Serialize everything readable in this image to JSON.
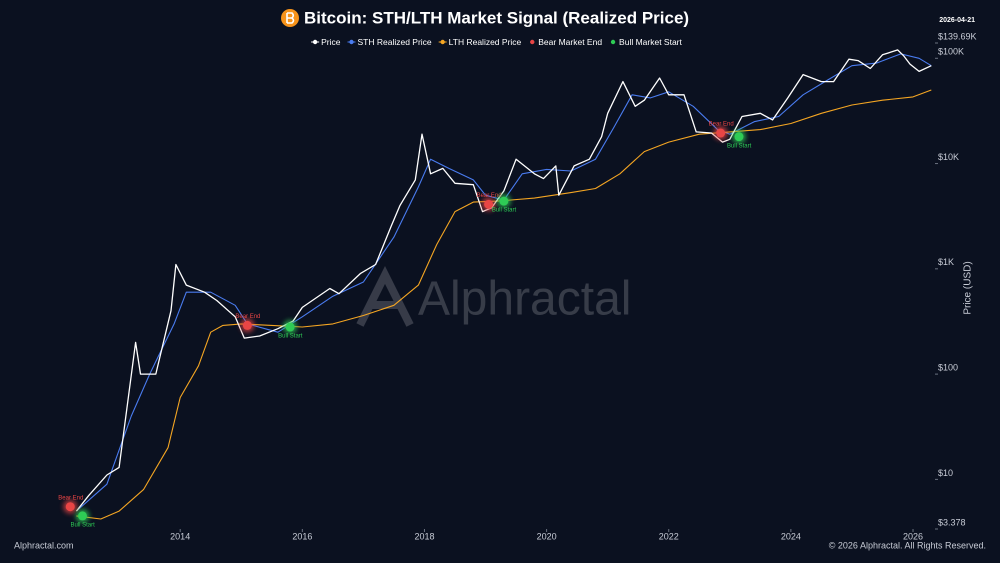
{
  "chart_data": {
    "type": "line",
    "title": "Bitcoin: STH/LTH Market Signal (Realized Price)",
    "date": "2026-04-21",
    "watermark": "Alphractal",
    "source": "Alphractal.com",
    "copyright": "© 2026 Alphractal. All Rights Reserved.",
    "y_label": "Price (USD)",
    "log_y": true,
    "grid": false,
    "legend": "top",
    "xlim": [
      2011.95,
      2026.36
    ],
    "xticks": [
      2014,
      2016,
      2018,
      2020,
      2022,
      2024,
      2026
    ],
    "ylim": [
      3.378,
      139690
    ],
    "yticks": [
      {
        "value": 3.378,
        "label": "$3.378"
      },
      {
        "value": 10,
        "label": "$10"
      },
      {
        "value": 100,
        "label": "$100"
      },
      {
        "value": 1000,
        "label": "$1K"
      },
      {
        "value": 10000,
        "label": "$10K"
      },
      {
        "value": 100000,
        "label": "$100K"
      },
      {
        "value": 139690,
        "label": "$139.69K"
      }
    ],
    "series": [
      {
        "name": "Price",
        "color": "#ffffff",
        "kind": "line",
        "x": [
          2012.3,
          2012.5,
          2012.8,
          2013.0,
          2013.27,
          2013.35,
          2013.6,
          2013.85,
          2013.93,
          2014.1,
          2014.4,
          2014.6,
          2014.9,
          2015.05,
          2015.3,
          2015.6,
          2015.85,
          2016.0,
          2016.45,
          2016.6,
          2016.95,
          2017.2,
          2017.45,
          2017.6,
          2017.85,
          2017.96,
          2018.1,
          2018.3,
          2018.5,
          2018.8,
          2018.95,
          2019.1,
          2019.3,
          2019.5,
          2019.8,
          2019.95,
          2020.15,
          2020.2,
          2020.45,
          2020.7,
          2020.9,
          2021.0,
          2021.25,
          2021.45,
          2021.6,
          2021.85,
          2022.0,
          2022.25,
          2022.45,
          2022.7,
          2022.88,
          2023.0,
          2023.2,
          2023.5,
          2023.7,
          2023.95,
          2024.2,
          2024.5,
          2024.7,
          2024.95,
          2025.1,
          2025.3,
          2025.5,
          2025.75,
          2025.85,
          2025.95,
          2026.1,
          2026.3
        ],
        "values": [
          5,
          7,
          11,
          13,
          200,
          100,
          100,
          400,
          1100,
          700,
          600,
          500,
          350,
          220,
          230,
          270,
          320,
          430,
          650,
          580,
          900,
          1100,
          2500,
          4000,
          7000,
          19000,
          8000,
          9000,
          6500,
          6300,
          3500,
          3800,
          5500,
          11000,
          8000,
          7200,
          9500,
          5000,
          9500,
          11000,
          18000,
          30000,
          60000,
          35000,
          40000,
          65000,
          45000,
          45000,
          20000,
          19500,
          16000,
          17000,
          28000,
          30000,
          26000,
          42000,
          70000,
          60000,
          60000,
          98000,
          95000,
          80000,
          108000,
          120000,
          105000,
          88000,
          75000,
          85000
        ]
      },
      {
        "name": "STH Realized Price",
        "color": "#4a7cf0",
        "kind": "line",
        "x": [
          2012.3,
          2012.8,
          2013.2,
          2013.5,
          2013.9,
          2014.1,
          2014.5,
          2014.9,
          2015.1,
          2015.6,
          2016.0,
          2016.5,
          2017.0,
          2017.5,
          2017.9,
          2018.1,
          2018.4,
          2018.8,
          2019.0,
          2019.3,
          2019.6,
          2020.0,
          2020.4,
          2020.8,
          2021.1,
          2021.4,
          2021.7,
          2022.0,
          2022.4,
          2022.8,
          2023.0,
          2023.4,
          2023.8,
          2024.2,
          2024.6,
          2025.0,
          2025.4,
          2025.8,
          2026.1,
          2026.3
        ],
        "values": [
          5,
          9,
          40,
          100,
          300,
          600,
          600,
          450,
          300,
          250,
          350,
          550,
          750,
          2000,
          6000,
          11000,
          9000,
          7000,
          5000,
          4500,
          8000,
          8800,
          8500,
          11000,
          22000,
          45000,
          42000,
          48000,
          35000,
          21000,
          19000,
          25000,
          28000,
          45000,
          62000,
          85000,
          90000,
          110000,
          100000,
          85000
        ]
      },
      {
        "name": "LTH Realized Price",
        "color": "#f5a623",
        "kind": "line",
        "x": [
          2012.3,
          2012.7,
          2013.0,
          2013.4,
          2013.8,
          2014.0,
          2014.3,
          2014.5,
          2014.7,
          2015.0,
          2015.5,
          2016.0,
          2016.5,
          2017.0,
          2017.5,
          2017.9,
          2018.2,
          2018.5,
          2018.8,
          2019.2,
          2019.8,
          2020.4,
          2020.8,
          2021.2,
          2021.6,
          2022.0,
          2022.5,
          2023.0,
          2023.5,
          2024.0,
          2024.5,
          2025.0,
          2025.5,
          2026.0,
          2026.3
        ],
        "values": [
          4.5,
          4.2,
          5,
          8,
          20,
          60,
          120,
          250,
          290,
          300,
          290,
          280,
          300,
          360,
          450,
          700,
          1700,
          3500,
          4300,
          4400,
          4700,
          5300,
          5800,
          8000,
          13000,
          16000,
          19000,
          20000,
          21000,
          24000,
          30000,
          36000,
          40000,
          43000,
          50000
        ]
      },
      {
        "name": "Bear Market End",
        "color": "#e84545",
        "kind": "point",
        "point_label": "Bear End",
        "x": [
          2012.2,
          2015.1,
          2019.05,
          2022.85
        ],
        "values": [
          5.5,
          290,
          4100,
          19500
        ]
      },
      {
        "name": "Bull Market Start",
        "color": "#2ecc55",
        "kind": "point",
        "point_label": "Bull Start",
        "x": [
          2012.4,
          2015.8,
          2019.3,
          2023.15
        ],
        "values": [
          4.5,
          280,
          4400,
          18000
        ]
      }
    ]
  }
}
